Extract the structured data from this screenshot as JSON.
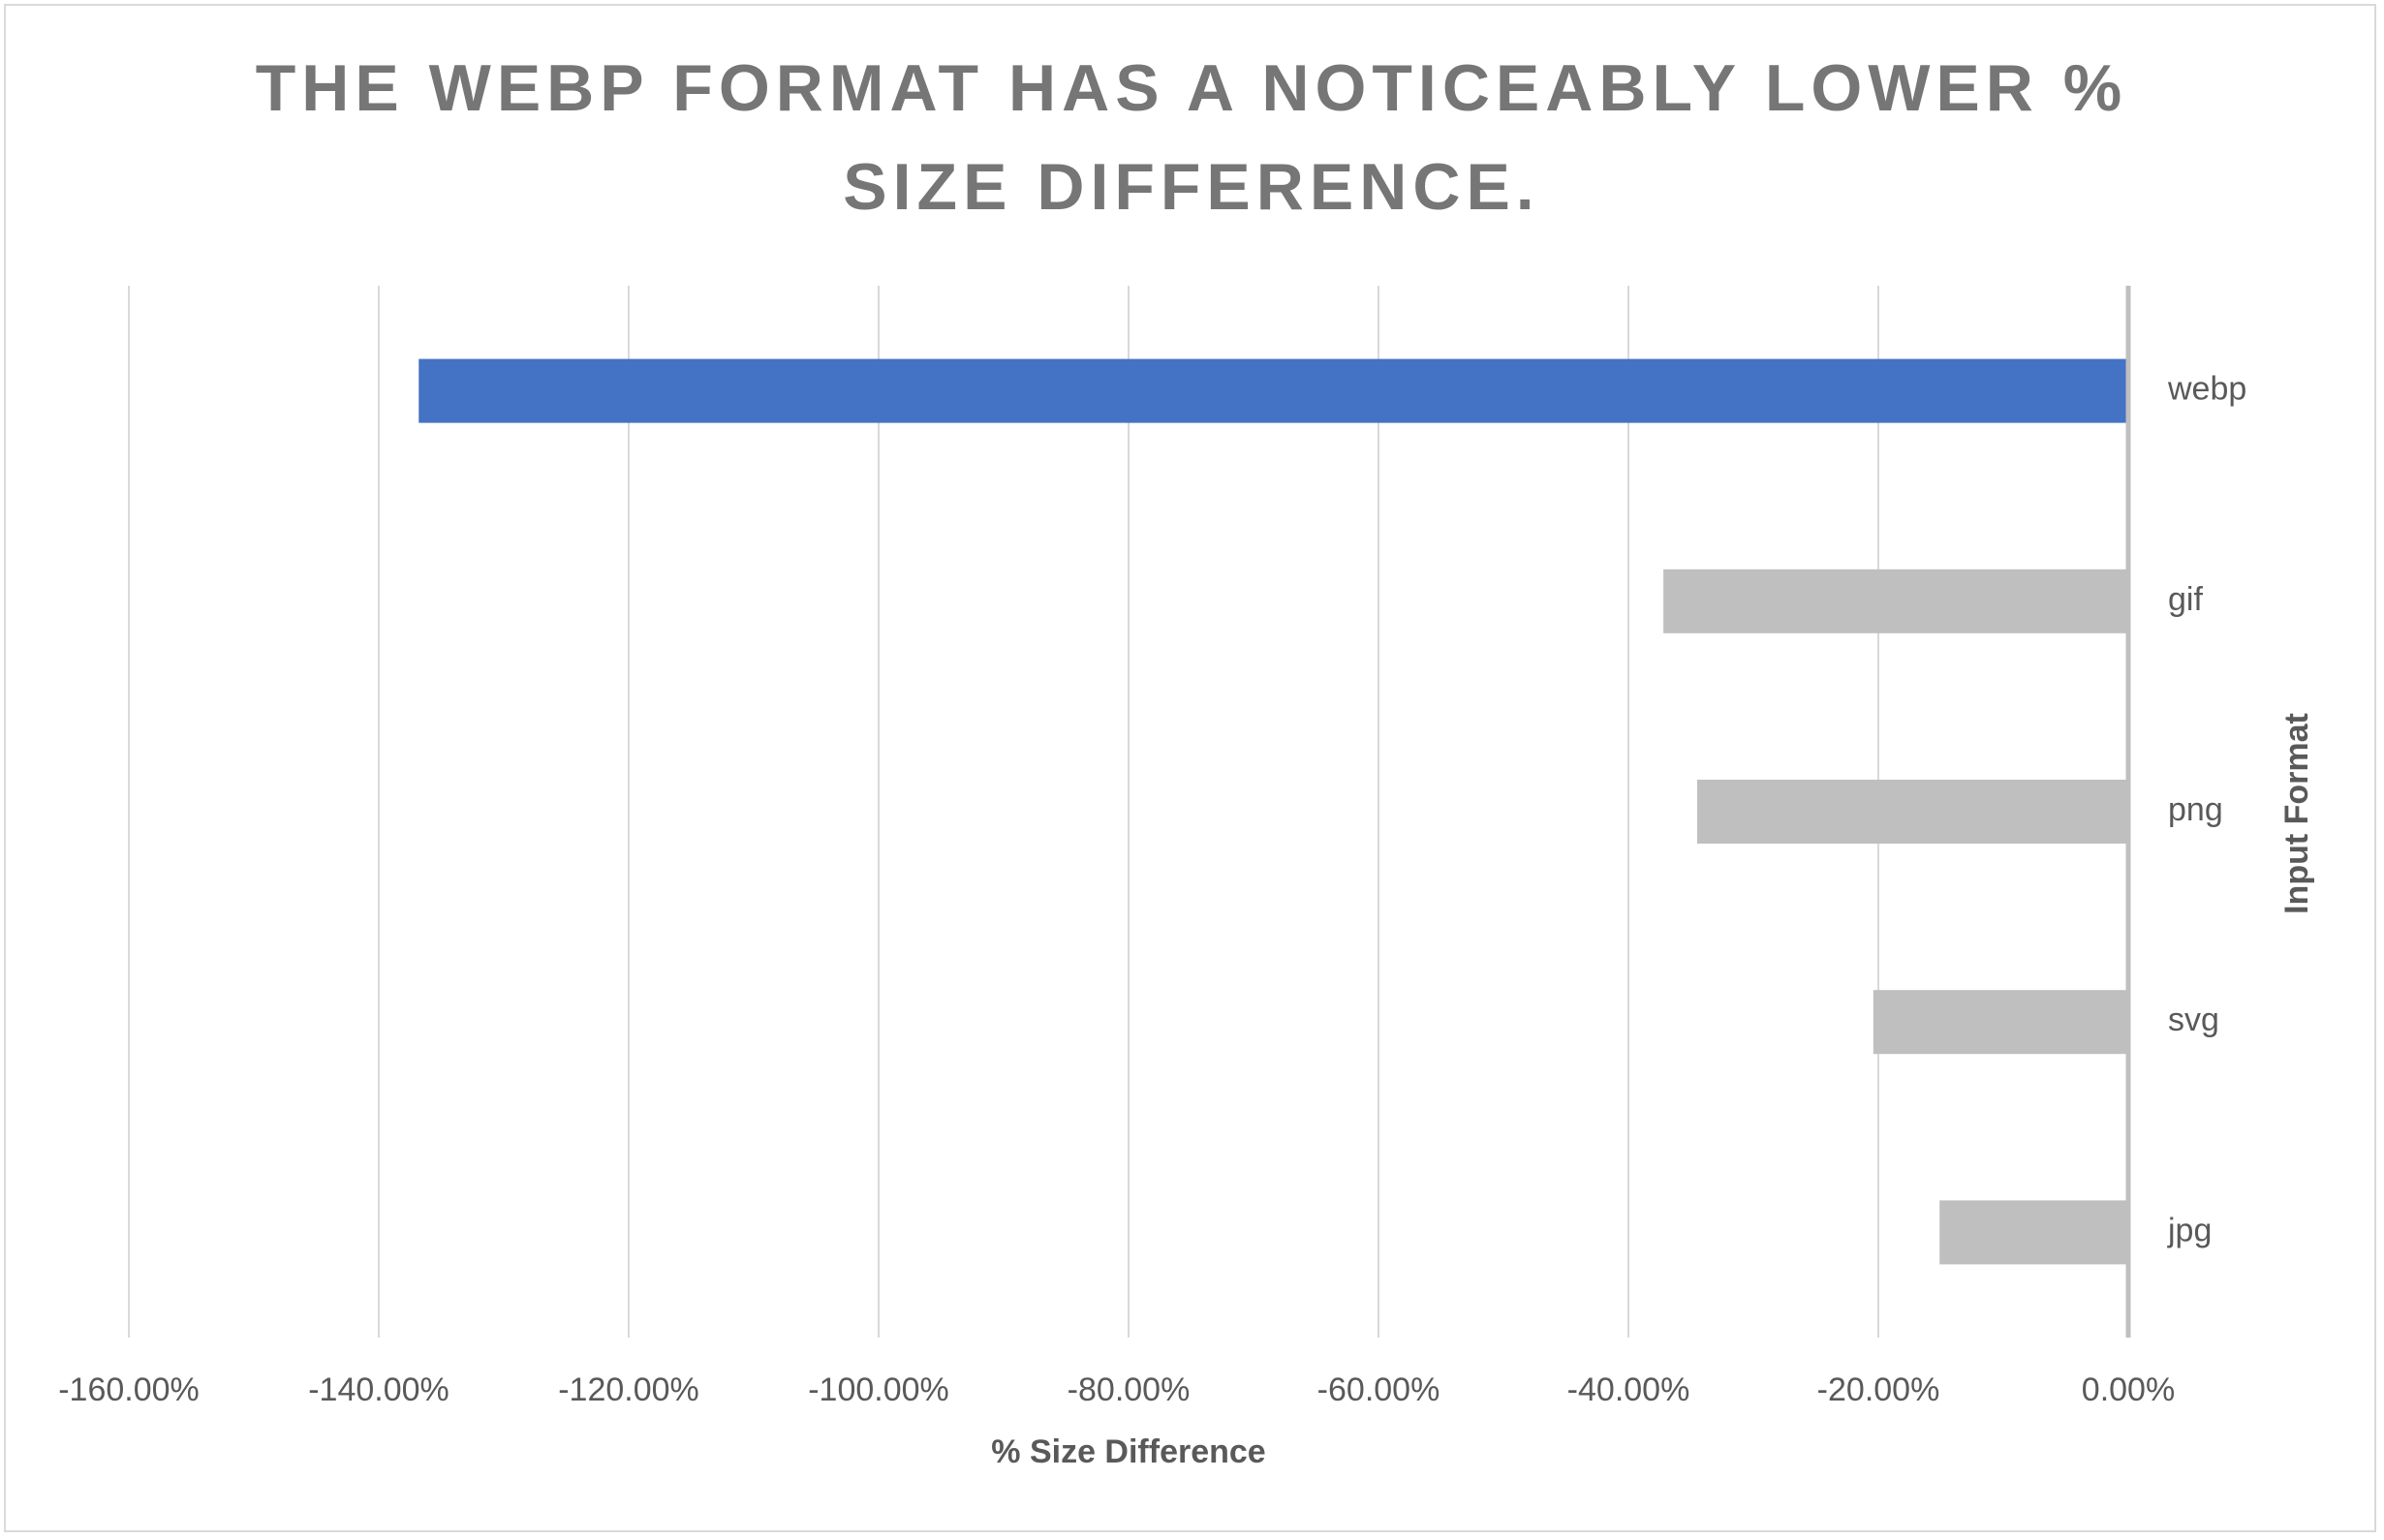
{
  "chart_data": {
    "type": "barh",
    "title": "THE WEBP FORMAT HAS A NOTICEABLY LOWER % SIZE DIFFERENCE.",
    "x_label": "% Size Difference",
    "y_label": "Input Format",
    "categories": [
      "webp",
      "gif",
      "png",
      "svg",
      "jpg"
    ],
    "values": [
      -136.8,
      -37.2,
      -34.5,
      -20.4,
      -15.1
    ],
    "colors": [
      "#4472c4",
      "#bfbfbf",
      "#bfbfbf",
      "#bfbfbf",
      "#bfbfbf"
    ],
    "xlim": [
      -160,
      0
    ],
    "xticks": [
      {
        "value": -160,
        "label": "-160.00%"
      },
      {
        "value": -140,
        "label": "-140.00%"
      },
      {
        "value": -120,
        "label": "-120.00%"
      },
      {
        "value": -100,
        "label": "-100.00%"
      },
      {
        "value": -80,
        "label": "-80.00%"
      },
      {
        "value": -60,
        "label": "-60.00%"
      },
      {
        "value": -40,
        "label": "-40.00%"
      },
      {
        "value": -20,
        "label": "-20.00%"
      },
      {
        "value": 0,
        "label": "0.00%"
      }
    ],
    "grid": true
  }
}
